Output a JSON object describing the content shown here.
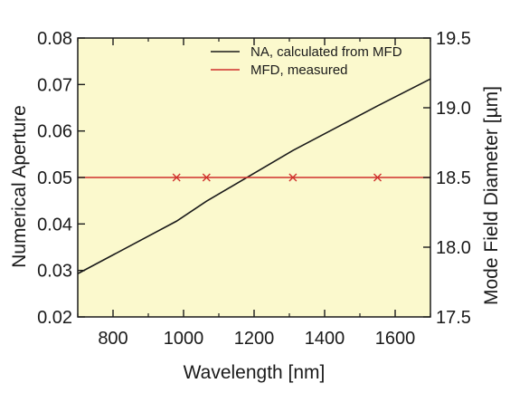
{
  "chart_data": {
    "type": "line",
    "xlabel": "Wavelength [nm]",
    "ylabel": "Numerical Aperture",
    "y2label": "Mode Field Diameter [µm]",
    "xlim": [
      700,
      1700
    ],
    "ylim": [
      0.02,
      0.08
    ],
    "y2lim": [
      17.5,
      19.5
    ],
    "x_ticks": [
      {
        "value": 800,
        "label": "800"
      },
      {
        "value": 1000,
        "label": "1000"
      },
      {
        "value": 1200,
        "label": "1200"
      },
      {
        "value": 1400,
        "label": "1400"
      },
      {
        "value": 1600,
        "label": "1600"
      }
    ],
    "x_minor_ticks": [
      700,
      900,
      1100,
      1300,
      1500,
      1700
    ],
    "y_ticks": [
      {
        "value": 0.02,
        "label": "0.02"
      },
      {
        "value": 0.03,
        "label": "0.03"
      },
      {
        "value": 0.04,
        "label": "0.04"
      },
      {
        "value": 0.05,
        "label": "0.05"
      },
      {
        "value": 0.06,
        "label": "0.06"
      },
      {
        "value": 0.07,
        "label": "0.07"
      },
      {
        "value": 0.08,
        "label": "0.08"
      }
    ],
    "y2_ticks": [
      {
        "value": 17.5,
        "label": "17.5"
      },
      {
        "value": 18.0,
        "label": "18.0"
      },
      {
        "value": 18.5,
        "label": "18.5"
      },
      {
        "value": 19.0,
        "label": "19.0"
      },
      {
        "value": 19.5,
        "label": "19.5"
      }
    ],
    "series": [
      {
        "name": "NA, calculated from MFD",
        "axis": "left",
        "color": "#1a1a1a",
        "x": [
          700,
          980,
          1065,
          1310,
          1550,
          1700
        ],
        "y": [
          0.0293,
          0.0406,
          0.0449,
          0.0558,
          0.0654,
          0.0712
        ]
      },
      {
        "name": "MFD, measured",
        "axis": "right",
        "color": "#d0312d",
        "line_x": [
          700,
          1700
        ],
        "line_y": [
          18.5,
          18.5
        ],
        "marker": "x",
        "x": [
          980,
          1065,
          1310,
          1550
        ],
        "y": [
          18.5,
          18.5,
          18.5,
          18.5
        ]
      }
    ],
    "grid": false,
    "legend_position": "top-right",
    "colors": {
      "plot_background": "#fbf9cd",
      "axis": "#1a1a1a"
    }
  }
}
